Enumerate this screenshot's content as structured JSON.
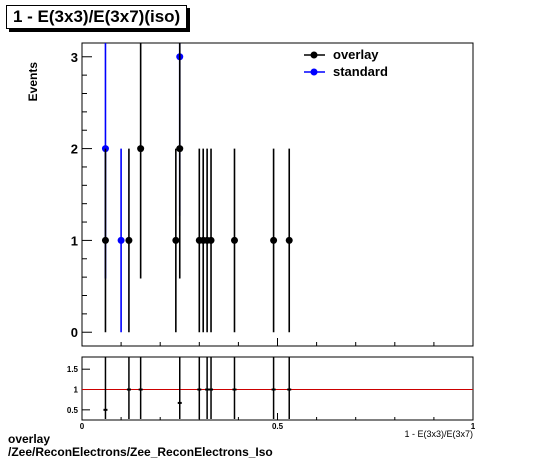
{
  "title": "1 - E(3x3)/E(3x7)(iso)",
  "footer": {
    "line1": "overlay",
    "line2": "/Zee/ReconElectrons/Zee_ReconElectrons_Iso"
  },
  "colors": {
    "overlay": "#000000",
    "standard": "#0000ff",
    "ratio_line": "#cc0000"
  },
  "chart_data": [
    {
      "type": "scatter",
      "ylabel": "Events",
      "xlim": [
        0,
        1
      ],
      "ylim": [
        -0.15,
        3.15
      ],
      "yticks": [
        0,
        1,
        2,
        3
      ],
      "legend": {
        "placement": "top-right",
        "entries": [
          "overlay",
          "standard"
        ]
      },
      "series": [
        {
          "name": "overlay",
          "x": [
            0.06,
            0.12,
            0.15,
            0.24,
            0.25,
            0.3,
            0.31,
            0.32,
            0.33,
            0.39,
            0.49,
            0.53
          ],
          "y": [
            1,
            1,
            2,
            1,
            2,
            1,
            1,
            1,
            1,
            1,
            1,
            1
          ]
        },
        {
          "name": "standard",
          "x": [
            0.06,
            0.1,
            0.25
          ],
          "y": [
            2,
            1,
            3
          ]
        }
      ]
    },
    {
      "type": "scatter",
      "xlabel": "1 - E(3x3)/E(3x7)",
      "xlim": [
        0,
        1
      ],
      "ylim": [
        0.25,
        1.8
      ],
      "xticks": [
        0,
        0.5,
        1
      ],
      "xtick_labels": [
        "0",
        "0.5",
        "1"
      ],
      "yticks": [
        0.5,
        1,
        1.5
      ],
      "ytick_labels": [
        "0.5",
        "1",
        "1.5"
      ],
      "reference_line": 1,
      "series": [
        {
          "name": "ratio",
          "x": [
            0.06,
            0.12,
            0.15,
            0.25,
            0.3,
            0.32,
            0.33,
            0.39,
            0.49,
            0.53
          ],
          "y": [
            0.5,
            1,
            1,
            0.67,
            1,
            1,
            1,
            1,
            1,
            1
          ]
        }
      ]
    }
  ]
}
